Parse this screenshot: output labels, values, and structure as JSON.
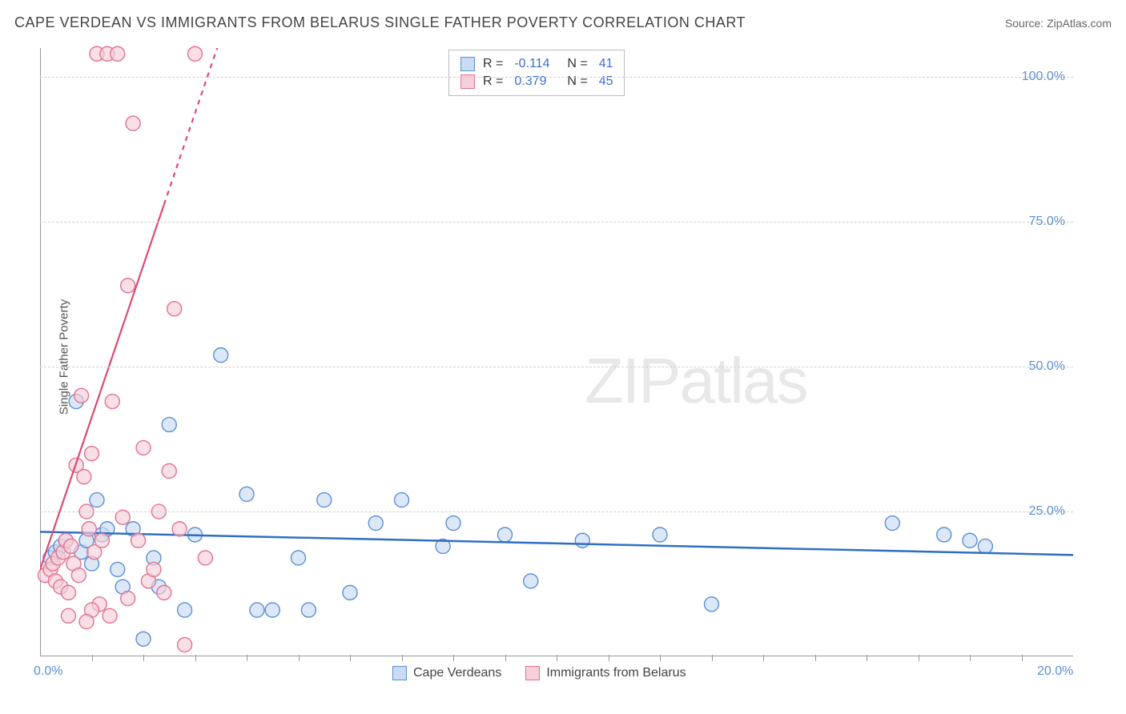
{
  "title": "CAPE VERDEAN VS IMMIGRANTS FROM BELARUS SINGLE FATHER POVERTY CORRELATION CHART",
  "source": "Source: ZipAtlas.com",
  "y_axis_label": "Single Father Poverty",
  "watermark_zip": "ZIP",
  "watermark_atlas": "atlas",
  "chart": {
    "type": "scatter",
    "xlim": [
      0,
      20
    ],
    "ylim": [
      0,
      105
    ],
    "x_ticks": [
      0,
      20
    ],
    "x_tick_labels": [
      "0.0%",
      "20.0%"
    ],
    "x_minor_ticks": [
      1,
      2,
      3,
      4,
      5,
      6,
      7,
      8,
      9,
      10,
      11,
      12,
      13,
      14,
      15,
      16,
      17,
      18,
      19
    ],
    "y_ticks": [
      25,
      50,
      75,
      100
    ],
    "y_tick_labels": [
      "25.0%",
      "50.0%",
      "75.0%",
      "100.0%"
    ],
    "grid_color": "#d0d0d0",
    "background_color": "#ffffff",
    "marker_radius": 9,
    "marker_stroke_width": 1.4,
    "series": [
      {
        "name": "Cape Verdeans",
        "fill_color": "#c9dcf3",
        "stroke_color": "#5a8fd4",
        "fill_opacity": 0.65,
        "trend": {
          "type": "solid",
          "color": "#2f6fc4",
          "width": 2.5,
          "y_at_x0": 21.5,
          "y_at_x20": 17.5
        },
        "R": "-0.114",
        "N": "41",
        "points": [
          [
            0.2,
            17
          ],
          [
            0.3,
            18
          ],
          [
            0.4,
            19
          ],
          [
            0.5,
            20
          ],
          [
            0.7,
            44
          ],
          [
            0.8,
            18
          ],
          [
            0.9,
            20
          ],
          [
            1.0,
            16
          ],
          [
            1.1,
            27
          ],
          [
            1.2,
            21
          ],
          [
            1.3,
            22
          ],
          [
            1.5,
            15
          ],
          [
            1.6,
            12
          ],
          [
            1.8,
            22
          ],
          [
            2.0,
            3
          ],
          [
            2.2,
            17
          ],
          [
            2.3,
            12
          ],
          [
            2.5,
            40
          ],
          [
            2.8,
            8
          ],
          [
            3.0,
            21
          ],
          [
            3.5,
            52
          ],
          [
            4.0,
            28
          ],
          [
            4.2,
            8
          ],
          [
            4.5,
            8
          ],
          [
            5.0,
            17
          ],
          [
            5.2,
            8
          ],
          [
            5.5,
            27
          ],
          [
            6.0,
            11
          ],
          [
            6.5,
            23
          ],
          [
            7.0,
            27
          ],
          [
            7.8,
            19
          ],
          [
            8.0,
            23
          ],
          [
            9.0,
            21
          ],
          [
            9.5,
            13
          ],
          [
            10.5,
            20
          ],
          [
            12.0,
            21
          ],
          [
            13.0,
            9
          ],
          [
            16.5,
            23
          ],
          [
            17.5,
            21
          ],
          [
            18.0,
            20
          ],
          [
            18.3,
            19
          ]
        ]
      },
      {
        "name": "Immigrants from Belarus",
        "fill_color": "#f5d0d8",
        "stroke_color": "#e2728e",
        "fill_opacity": 0.65,
        "trend": {
          "type": "solid_then_dashed",
          "color": "#e0496e",
          "width": 2.2,
          "y_at_x0": 15,
          "y_at_x20": 540,
          "dash_from_y": 78
        },
        "R": "0.379",
        "N": "45",
        "points": [
          [
            0.1,
            14
          ],
          [
            0.2,
            15
          ],
          [
            0.25,
            16
          ],
          [
            0.3,
            13
          ],
          [
            0.35,
            17
          ],
          [
            0.4,
            12
          ],
          [
            0.45,
            18
          ],
          [
            0.5,
            20
          ],
          [
            0.55,
            11
          ],
          [
            0.6,
            19
          ],
          [
            0.65,
            16
          ],
          [
            0.7,
            33
          ],
          [
            0.75,
            14
          ],
          [
            0.8,
            45
          ],
          [
            0.85,
            31
          ],
          [
            0.9,
            25
          ],
          [
            0.95,
            22
          ],
          [
            1.0,
            35
          ],
          [
            1.05,
            18
          ],
          [
            1.1,
            104
          ],
          [
            1.15,
            9
          ],
          [
            1.2,
            20
          ],
          [
            1.3,
            104
          ],
          [
            1.4,
            44
          ],
          [
            1.5,
            104
          ],
          [
            1.6,
            24
          ],
          [
            1.7,
            64
          ],
          [
            1.8,
            92
          ],
          [
            1.9,
            20
          ],
          [
            2.0,
            36
          ],
          [
            2.1,
            13
          ],
          [
            2.2,
            15
          ],
          [
            2.3,
            25
          ],
          [
            2.4,
            11
          ],
          [
            2.5,
            32
          ],
          [
            2.6,
            60
          ],
          [
            2.7,
            22
          ],
          [
            2.8,
            2
          ],
          [
            3.0,
            104
          ],
          [
            3.2,
            17
          ],
          [
            1.0,
            8
          ],
          [
            0.55,
            7
          ],
          [
            1.35,
            7
          ],
          [
            1.7,
            10
          ],
          [
            0.9,
            6
          ]
        ]
      }
    ]
  },
  "legend_top": {
    "rows": [
      {
        "swatch_fill": "#c9dcf3",
        "swatch_stroke": "#5a8fd4",
        "R_label": "R =",
        "R": "-0.114",
        "N_label": "N =",
        "N": "41"
      },
      {
        "swatch_fill": "#f5d0d8",
        "swatch_stroke": "#e2728e",
        "R_label": "R =",
        "R": "0.379",
        "N_label": "N =",
        "N": "45"
      }
    ]
  },
  "legend_bottom": {
    "items": [
      {
        "swatch_fill": "#c9dcf3",
        "swatch_stroke": "#5a8fd4",
        "label": "Cape Verdeans"
      },
      {
        "swatch_fill": "#f5d0d8",
        "swatch_stroke": "#e2728e",
        "label": "Immigrants from Belarus"
      }
    ]
  }
}
